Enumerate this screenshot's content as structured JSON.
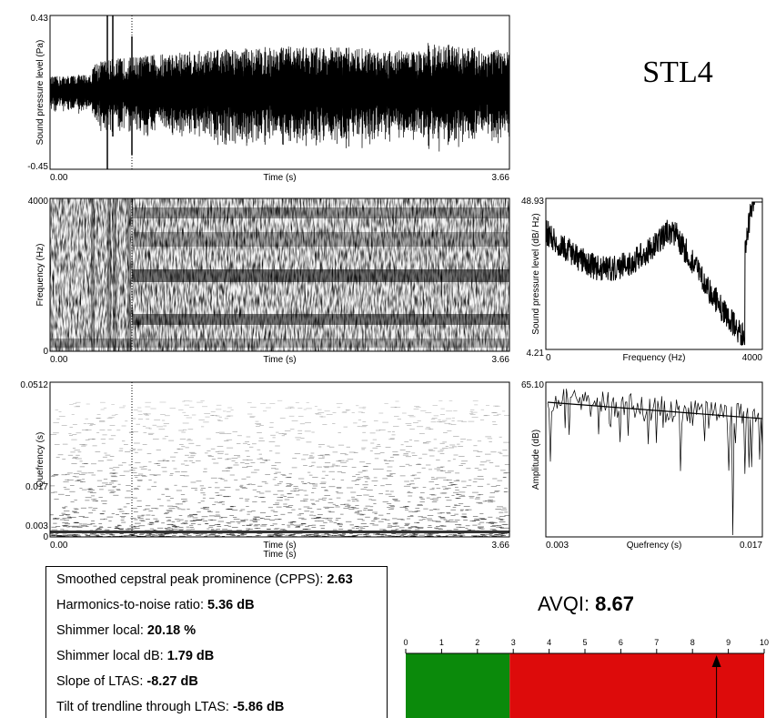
{
  "title": "STL4",
  "waveform": {
    "ylabel": "Sound pressure level (Pa)",
    "xlabel": "Time (s)",
    "yticks": [
      "0.43",
      "-0.45"
    ],
    "xticks": [
      "0.00",
      "3.66"
    ]
  },
  "spectrogram": {
    "ylabel": "Frequency (Hz)",
    "xlabel": "Time (s)",
    "yticks": [
      "4000",
      "0"
    ],
    "xticks": [
      "0.00",
      "3.66"
    ]
  },
  "ltas": {
    "ylabel": "Sound pressure level (dB/ Hz)",
    "xlabel": "Frequency (Hz)",
    "yticks": [
      "48.93",
      "4.21"
    ],
    "xticks": [
      "0",
      "4000"
    ]
  },
  "cepstrogram": {
    "ylabel": "Quefrency (s)",
    "xlabels": [
      "Time (s)",
      "Time (s)"
    ],
    "yticks": [
      "0.0512",
      "0.017",
      "0.003",
      "0"
    ],
    "xticks": [
      "0.00",
      "3.66"
    ]
  },
  "cepstrum": {
    "ylabel": "Amplitude (dB)",
    "xlabel": "Quefrency (s)",
    "yticks": [
      "65.10"
    ],
    "xticks": [
      "0.003",
      "0.017"
    ]
  },
  "measures": [
    {
      "label": "Smoothed cepstral peak prominence (CPPS): ",
      "value": "2.63"
    },
    {
      "label": "Harmonics-to-noise ratio: ",
      "value": "5.36 dB"
    },
    {
      "label": "Shimmer local: ",
      "value": "20.18 %"
    },
    {
      "label": "Shimmer local dB: ",
      "value": "1.79 dB"
    },
    {
      "label": "Slope of LTAS: ",
      "value": "-8.27 dB"
    },
    {
      "label": "Tilt of trendline through LTAS: ",
      "value": "-5.86 dB"
    }
  ],
  "avqi": {
    "label": "AVQI: ",
    "value": 8.67,
    "scale": {
      "ticks": [
        0,
        1,
        2,
        3,
        4,
        5,
        6,
        7,
        8,
        9,
        10
      ],
      "threshold": 2.9,
      "low_color": "#0b8a0b",
      "high_color": "#dd0b0b"
    }
  }
}
